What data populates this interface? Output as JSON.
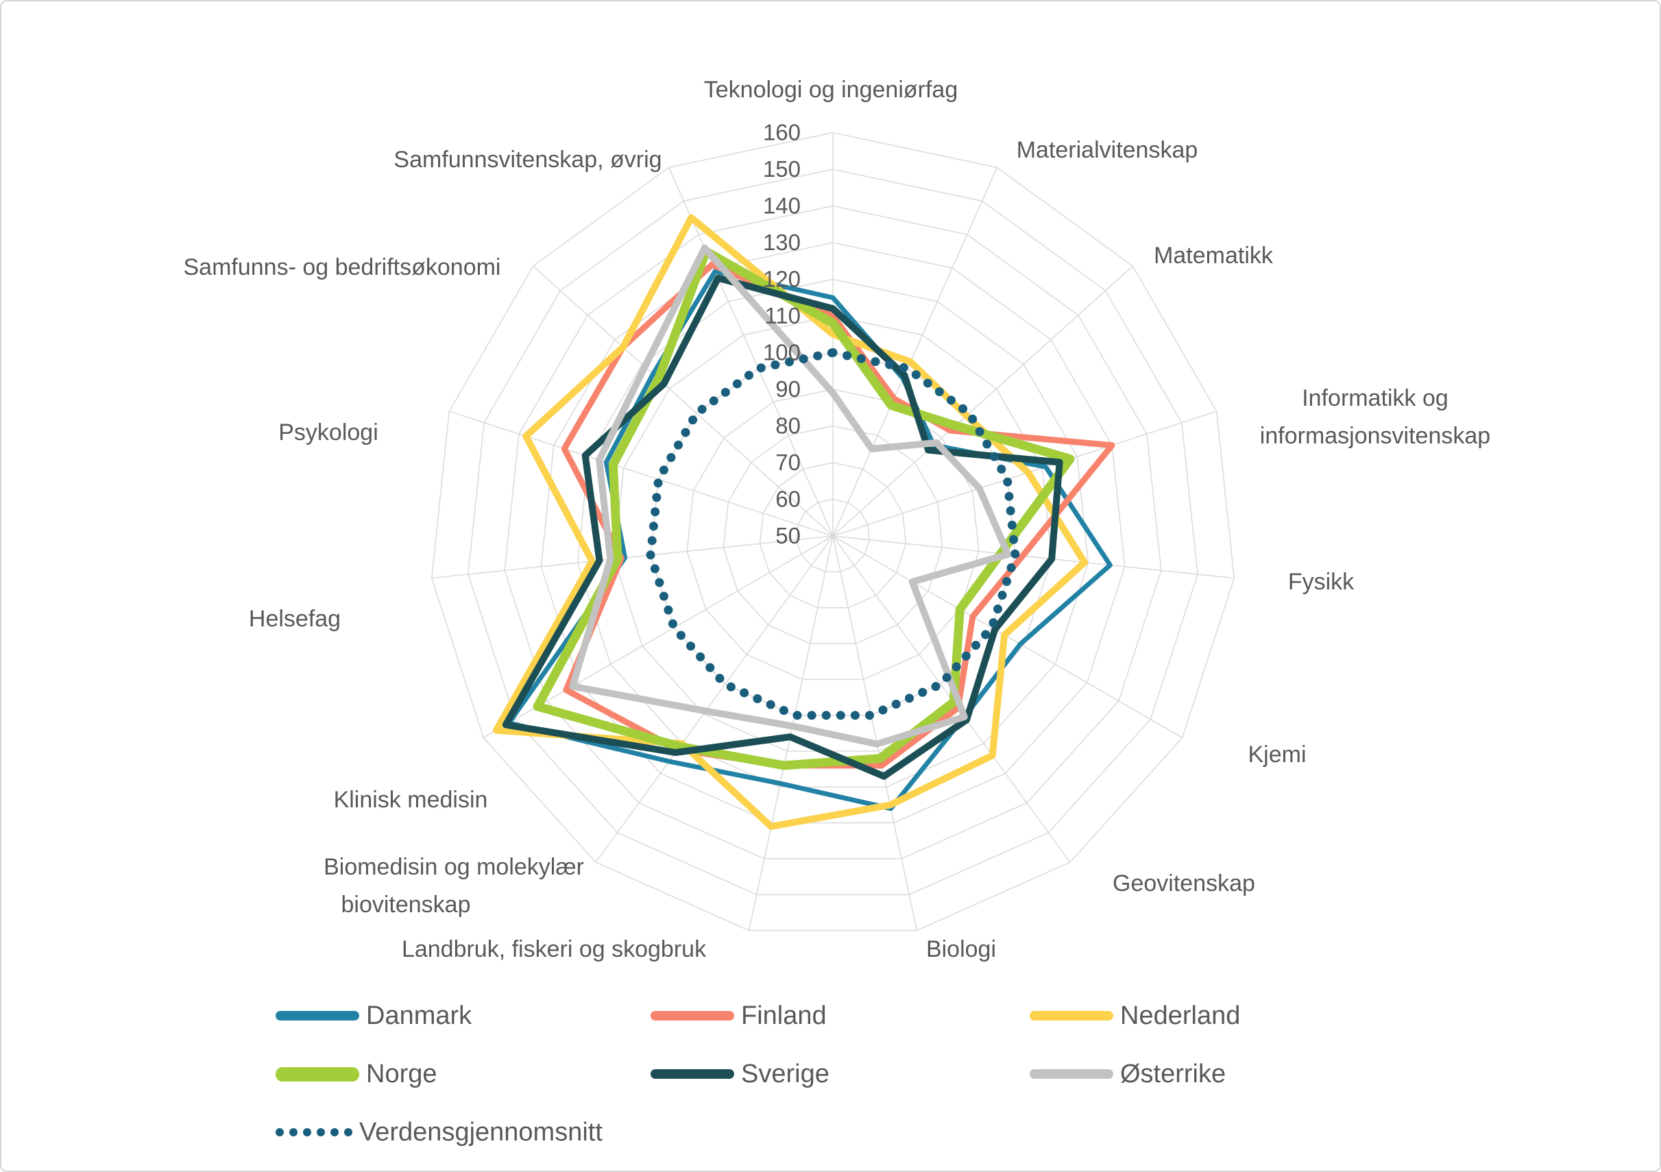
{
  "chart_data": {
    "type": "radar",
    "title": "",
    "grid": true,
    "legend_position": "bottom",
    "radial_axis": {
      "min": 50,
      "max": 160,
      "step": 10,
      "tick_labels": [
        "50",
        "60",
        "70",
        "80",
        "90",
        "100",
        "110",
        "120",
        "130",
        "140",
        "150",
        "160"
      ]
    },
    "categories": [
      {
        "lines": [
          "Teknologi og ingeniørfag"
        ]
      },
      {
        "lines": [
          "Materialvitenskap"
        ]
      },
      {
        "lines": [
          "Matematikk"
        ]
      },
      {
        "lines": [
          "Informatikk og",
          "informasjonsvitenskap"
        ]
      },
      {
        "lines": [
          "Fysikk"
        ]
      },
      {
        "lines": [
          "Kjemi"
        ]
      },
      {
        "lines": [
          "Geovitenskap"
        ]
      },
      {
        "lines": [
          "Biologi"
        ]
      },
      {
        "lines": [
          "Landbruk, fiskeri og skogbruk"
        ]
      },
      {
        "lines": [
          "Biomedisin og molekylær",
          "biovitenskap"
        ]
      },
      {
        "lines": [
          "Klinisk medisin"
        ]
      },
      {
        "lines": [
          "Helsefag"
        ]
      },
      {
        "lines": [
          "Psykologi"
        ]
      },
      {
        "lines": [
          "Samfunns- og bedriftsøkonomi"
        ]
      },
      {
        "lines": [
          "Samfunnsvitenskap, øvrig"
        ]
      }
    ],
    "series": [
      {
        "name": "Danmark",
        "color": "#2282A5",
        "width": 7,
        "style": "solid",
        "marker": "pill",
        "values": [
          115,
          97,
          87,
          111,
          126,
          109,
          111,
          126,
          119,
          126,
          152,
          107,
          115,
          116,
          129
        ]
      },
      {
        "name": "Finland",
        "color": "#F8836D",
        "width": 9,
        "style": "solid",
        "marker": "pill",
        "values": [
          110,
          91,
          93,
          130,
          102,
          94,
          108,
          114,
          114,
          122,
          134,
          108,
          127,
          127,
          131
        ]
      },
      {
        "name": "Nederland",
        "color": "#FCD24C",
        "width": 10,
        "style": "solid",
        "marker": "pill",
        "values": [
          105,
          102,
          99,
          106,
          119,
          104,
          124,
          125,
          131,
          120,
          156,
          116,
          138,
          127,
          145
        ]
      },
      {
        "name": "Norge",
        "color": "#A3CE3A",
        "width": 13,
        "style": "solid",
        "marker": "pill",
        "values": [
          108,
          89,
          95,
          118,
          96,
          90,
          106,
          112,
          114,
          121,
          143,
          109,
          113,
          114,
          135
        ]
      },
      {
        "name": "Sverige",
        "color": "#1B4F55",
        "width": 10,
        "style": "solid",
        "marker": "pill",
        "values": [
          112,
          98,
          85,
          115,
          110,
          101,
          112,
          117,
          106,
          123,
          153,
          114,
          121,
          112,
          127
        ]
      },
      {
        "name": "Østerrike",
        "color": "#C2C2C2",
        "width": 10,
        "style": "solid",
        "marker": "pill",
        "values": [
          89,
          76,
          88,
          92,
          98,
          75,
          111,
          108,
          103,
          109,
          132,
          111,
          117,
          119,
          136
        ]
      },
      {
        "name": "Verdensgjennomsnitt",
        "color": "#1A5E7D",
        "width": 13,
        "style": "dotted",
        "marker": "dots",
        "values": [
          100,
          100,
          100,
          100,
          100,
          100,
          100,
          100,
          100,
          100,
          100,
          100,
          100,
          100,
          100
        ]
      }
    ],
    "grid_color": "#DCDCDC",
    "text_color": "#595959"
  }
}
